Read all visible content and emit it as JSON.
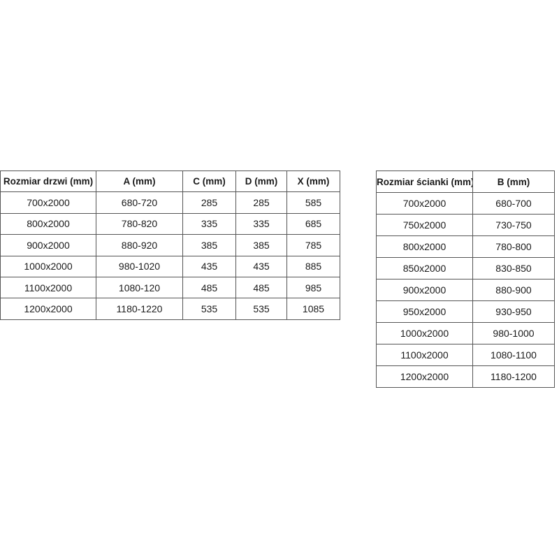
{
  "page": {
    "background_color": "#ffffff",
    "border_color": "#555555",
    "text_color": "#1a1a1a"
  },
  "tables": {
    "doors": {
      "headers": [
        "Rozmiar drzwi (mm)",
        "A (mm)",
        "C (mm)",
        "D (mm)",
        "X (mm)"
      ],
      "rows": [
        [
          "700x2000",
          "680-720",
          "285",
          "285",
          "585"
        ],
        [
          "800x2000",
          "780-820",
          "335",
          "335",
          "685"
        ],
        [
          "900x2000",
          "880-920",
          "385",
          "385",
          "785"
        ],
        [
          "1000x2000",
          "980-1020",
          "435",
          "435",
          "885"
        ],
        [
          "1100x2000",
          "1080-120",
          "485",
          "485",
          "985"
        ],
        [
          "1200x2000",
          "1180-1220",
          "535",
          "535",
          "1085"
        ]
      ]
    },
    "walls": {
      "headers": [
        "Rozmiar ścianki (mm)",
        "B (mm)"
      ],
      "rows": [
        [
          "700x2000",
          "680-700"
        ],
        [
          "750x2000",
          "730-750"
        ],
        [
          "800x2000",
          "780-800"
        ],
        [
          "850x2000",
          "830-850"
        ],
        [
          "900x2000",
          "880-900"
        ],
        [
          "950x2000",
          "930-950"
        ],
        [
          "1000x2000",
          "980-1000"
        ],
        [
          "1100x2000",
          "1080-1100"
        ],
        [
          "1200x2000",
          "1180-1200"
        ]
      ]
    }
  }
}
